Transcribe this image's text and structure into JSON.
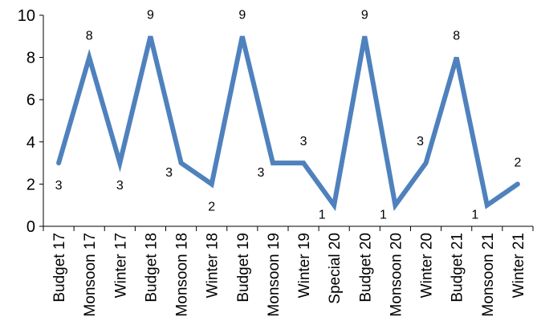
{
  "chart_data": {
    "type": "line",
    "title": "",
    "xlabel": "",
    "ylabel": "",
    "ylim": [
      0,
      10
    ],
    "yticks": [
      "0",
      "2",
      "4",
      "6",
      "8",
      "10"
    ],
    "grid": false,
    "legend": "none",
    "categories": [
      "Budget 17",
      "Monsoon 17",
      "Winter 17",
      "Budget 18",
      "Monsoon 18",
      "Winter 18",
      "Budget 19",
      "Monsoon 19",
      "Winter 19",
      "Special  20",
      "Budget 20",
      "Monsoon 20",
      "Winter 20",
      "Budget 21",
      "Monsoon 21",
      "Winter  21"
    ],
    "series": [
      {
        "values": [
          3,
          8,
          3,
          9,
          3,
          2,
          9,
          3,
          3,
          1,
          9,
          1,
          3,
          8,
          1,
          2
        ],
        "color": "#4f81bd"
      }
    ],
    "data_labels": [
      "3",
      "8",
      "3",
      "9",
      "3",
      "2",
      "9",
      "3",
      "3",
      "1",
      "9",
      "1",
      "3",
      "8",
      "1",
      "2"
    ],
    "label_positions": [
      "below",
      "above",
      "below",
      "above",
      "left",
      "below",
      "above",
      "left",
      "above",
      "left",
      "above",
      "left",
      "above-left",
      "above",
      "left",
      "above"
    ]
  }
}
